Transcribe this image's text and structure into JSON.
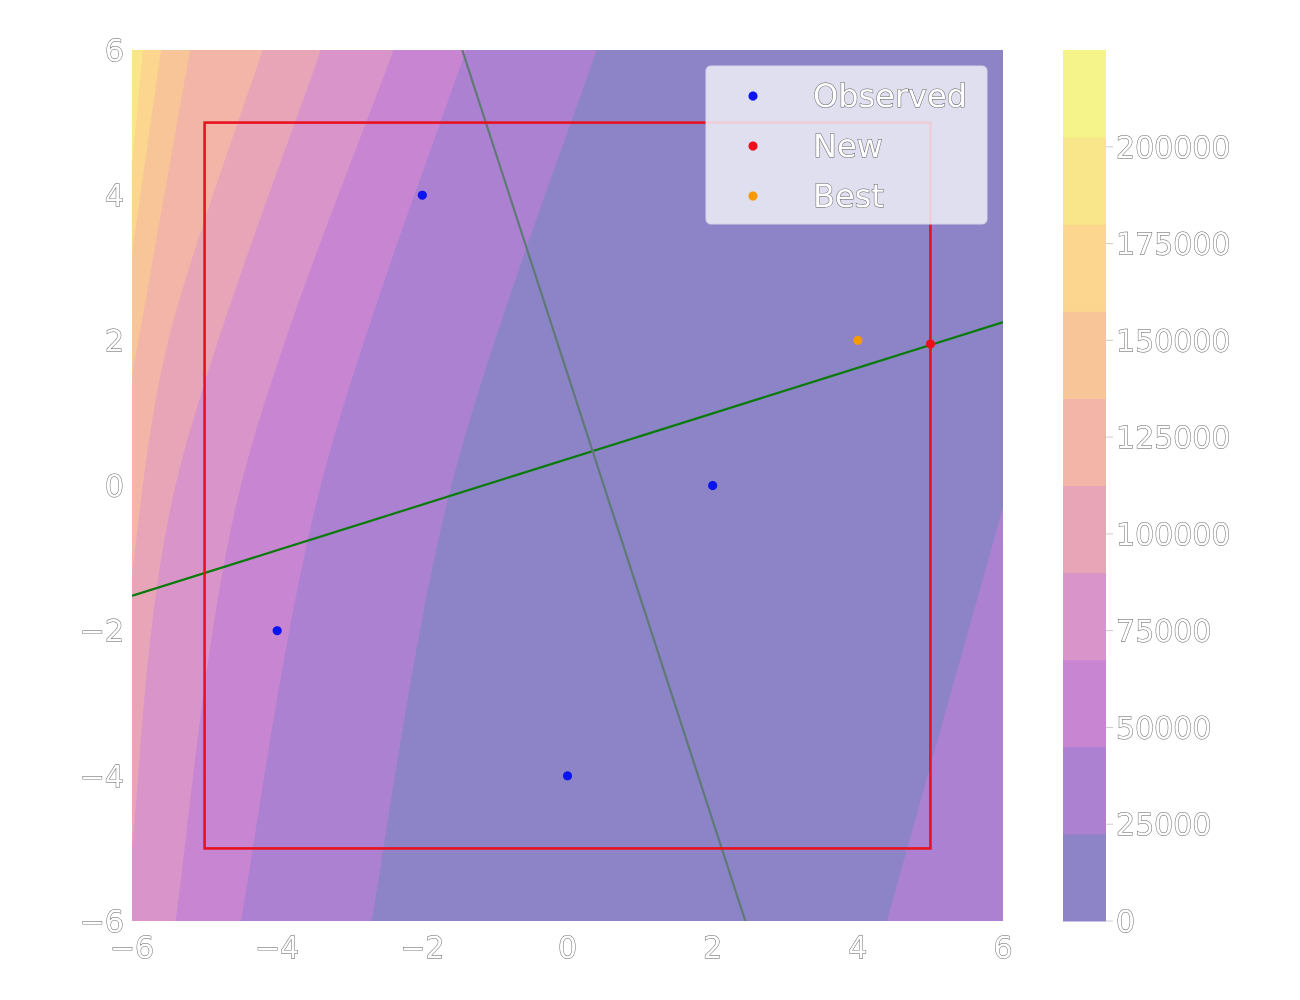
{
  "chart_data": {
    "type": "contour",
    "xlim": [
      -6,
      6
    ],
    "ylim": [
      -6,
      6
    ],
    "x_ticks": [
      "−6",
      "−4",
      "−2",
      "0",
      "2",
      "4",
      "6"
    ],
    "y_ticks": [
      "−6",
      "−4",
      "−2",
      "0",
      "2",
      "4",
      "6"
    ],
    "x_tick_values": [
      -6,
      -4,
      -2,
      0,
      2,
      4,
      6
    ],
    "y_tick_values": [
      -6,
      -4,
      -2,
      0,
      2,
      4,
      6
    ],
    "colorbar": {
      "range": [
        0,
        225000
      ],
      "ticks": [
        "0",
        "25000",
        "50000",
        "75000",
        "100000",
        "125000",
        "150000",
        "175000",
        "200000"
      ],
      "tick_values": [
        0,
        25000,
        50000,
        75000,
        100000,
        125000,
        150000,
        175000,
        200000
      ],
      "levels": [
        0,
        22500,
        45000,
        67500,
        90000,
        112500,
        135000,
        157500,
        180000,
        202500,
        225000
      ],
      "colors": [
        "#8c84c6",
        "#ac81d2",
        "#c886d2",
        "#d994c9",
        "#e8a5b8",
        "#f2b5a7",
        "#f8c598",
        "#fcd68e",
        "#f9e68a",
        "#f4f48a"
      ]
    },
    "contour_boundaries": [
      {
        "level": 22500,
        "points": [
          [
            -2.7,
            -6
          ],
          [
            -1.6,
            0
          ],
          [
            0.4,
            6
          ]
        ]
      },
      {
        "level": 45000,
        "points": [
          [
            -4.5,
            -6
          ],
          [
            -3.4,
            0
          ],
          [
            -1.4,
            6
          ]
        ]
      },
      {
        "level": 67500,
        "points": [
          [
            -5.4,
            -6
          ],
          [
            -4.5,
            0
          ],
          [
            -2.4,
            6
          ]
        ]
      },
      {
        "level": 90000,
        "points": [
          [
            -6,
            -5.0
          ],
          [
            -5.4,
            0
          ],
          [
            -3.4,
            6
          ]
        ]
      },
      {
        "level": 112500,
        "points": [
          [
            -6,
            -1.2
          ],
          [
            -5.5,
            2
          ],
          [
            -4.2,
            6
          ]
        ]
      },
      {
        "level": 135000,
        "points": [
          [
            -6,
            1.5
          ],
          [
            -5.2,
            6
          ]
        ]
      },
      {
        "level": 157500,
        "points": [
          [
            -6,
            3.2
          ],
          [
            -5.6,
            6
          ]
        ]
      },
      {
        "level": 180000,
        "points": [
          [
            -6,
            4.4
          ],
          [
            -5.85,
            6
          ]
        ]
      }
    ],
    "right_region": {
      "level": 22500,
      "points": [
        [
          6,
          -0.3
        ],
        [
          4.4,
          -6
        ]
      ]
    },
    "trust_region": {
      "x": [
        -5,
        5
      ],
      "y": [
        -5,
        5
      ],
      "color": "#e8121e"
    },
    "lines": [
      {
        "color": "#087a08",
        "points": [
          [
            -6,
            -1.52
          ],
          [
            6,
            2.25
          ]
        ]
      },
      {
        "color": "#5f7a76",
        "points": [
          [
            -1.45,
            6
          ],
          [
            2.45,
            -6
          ]
        ]
      }
    ],
    "series": [
      {
        "name": "Observed",
        "color": "#0a14f0",
        "points": [
          [
            -2,
            4
          ],
          [
            -4,
            -2
          ],
          [
            0,
            -4
          ],
          [
            2,
            0
          ]
        ]
      },
      {
        "name": "New",
        "color": "#ee0f1c",
        "points": [
          [
            5,
            1.95
          ]
        ]
      },
      {
        "name": "Best",
        "color": "#f59a05",
        "points": [
          [
            4,
            2
          ]
        ]
      }
    ],
    "legend": {
      "position": "top-right"
    }
  }
}
